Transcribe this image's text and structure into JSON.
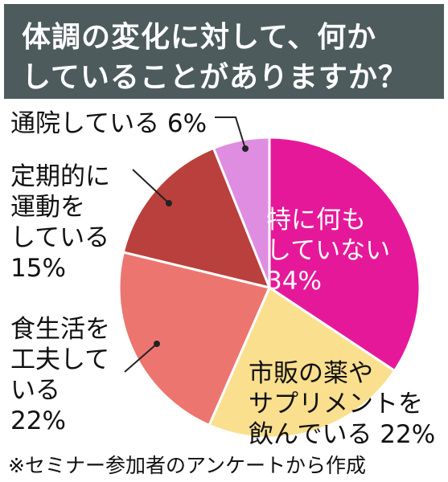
{
  "header": {
    "title_line1": "体調の変化に対して、何か",
    "title_line2": "していることがありますか？"
  },
  "chart_data": {
    "type": "pie",
    "slices": [
      {
        "label_lines": [
          "特に何も",
          "していない",
          "34%"
        ],
        "value": 34,
        "color": "#e6189a"
      },
      {
        "label_lines": [
          "市販の薬や",
          "サプリメントを",
          "飲んでいる 22%"
        ],
        "value": 22,
        "color": "#fadf8e"
      },
      {
        "label_lines": [
          "食生活を",
          "工夫して",
          "いる",
          "22%"
        ],
        "value": 22,
        "color": "#ed756f"
      },
      {
        "label_lines": [
          "定期的に",
          "運動を",
          "している",
          "15%"
        ],
        "value": 15,
        "color": "#b9403c"
      },
      {
        "label_lines": [
          "通院している 6%"
        ],
        "value": 6,
        "color": "#de8de0"
      }
    ]
  },
  "footer": {
    "note": "※セミナー参加者のアンケートから作成"
  }
}
